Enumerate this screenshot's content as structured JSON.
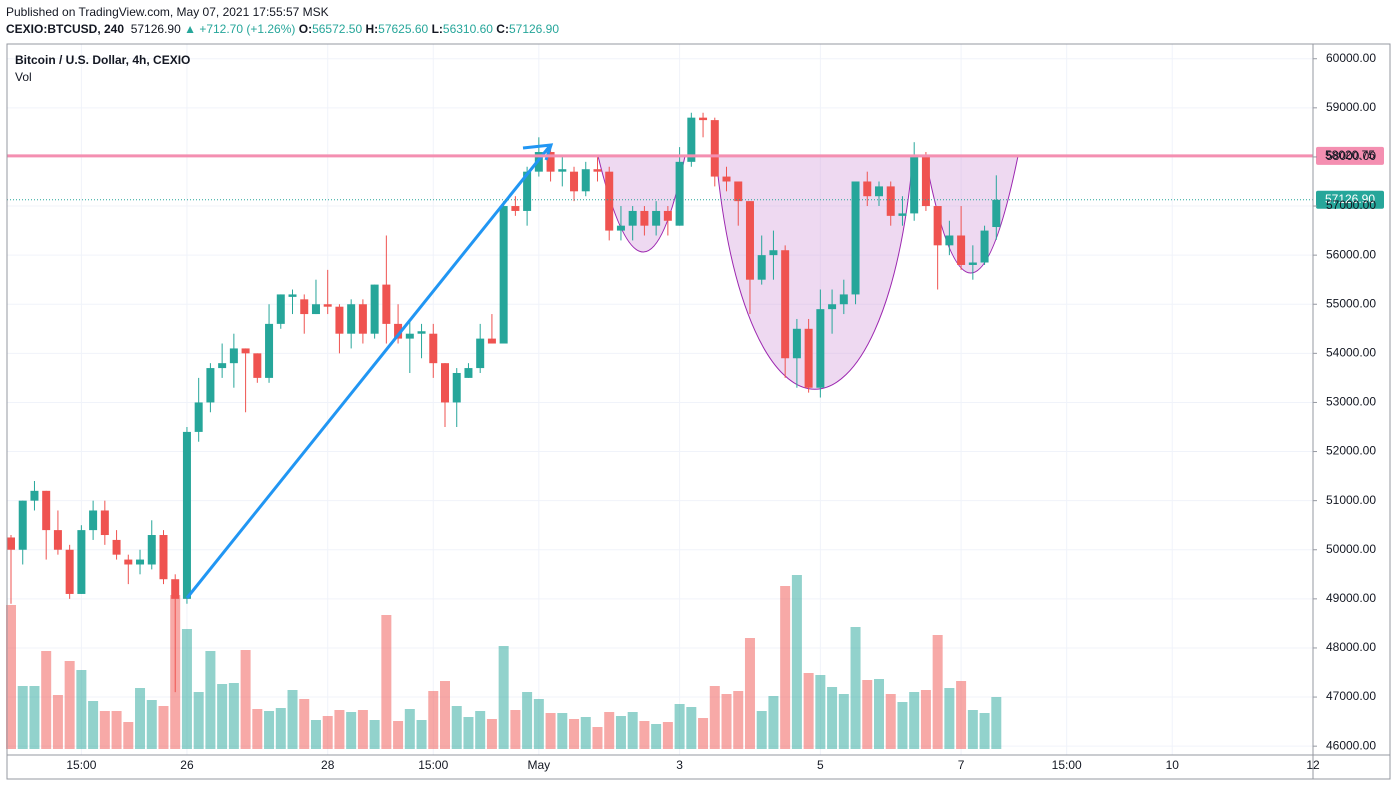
{
  "header": {
    "published": "Published on TradingView.com, May 07, 2021 17:55:57 MSK",
    "symbol": "CEXIO:BTCUSD, 240",
    "last": "57126.90",
    "change": "▲ +712.70 (+1.26%)",
    "o_key": "O:",
    "o": "56572.50",
    "h_key": "H:",
    "h": "57625.60",
    "l_key": "L:",
    "l": "56310.60",
    "c_key": "C:",
    "c": "57126.90"
  },
  "chart_data": {
    "type": "candlestick",
    "title": "Bitcoin / U.S. Dollar, 4h, CEXIO",
    "volume_label": "Vol",
    "up_color": "#26a69a",
    "down_color": "#ef5350",
    "categories": [
      null,
      null,
      null,
      null,
      null,
      null,
      "15:00",
      null,
      null,
      null,
      null,
      null,
      null,
      null,
      null,
      "26",
      null,
      null,
      null,
      null,
      null,
      null,
      null,
      null,
      null,
      null,
      null,
      "28",
      null,
      null,
      null,
      null,
      null,
      null,
      null,
      null,
      "15:00",
      null,
      null,
      null,
      null,
      null,
      null,
      null,
      null,
      "May",
      null,
      null,
      null,
      null,
      null,
      null,
      null,
      null,
      null,
      null,
      null,
      "3",
      null,
      null,
      null,
      null,
      null,
      null,
      null,
      null,
      null,
      null,
      null,
      "5",
      null,
      null,
      null,
      null,
      null,
      null,
      null,
      null,
      null,
      null,
      null,
      "7",
      null,
      null,
      null,
      null,
      null,
      null,
      null,
      null,
      "15:00",
      null,
      null,
      null,
      null,
      null,
      null,
      null,
      null,
      "10",
      null,
      null,
      null,
      null,
      null,
      null,
      null,
      null,
      null,
      null,
      null,
      "12"
    ],
    "open": [
      50250,
      50000,
      51000,
      51200,
      50400,
      50000,
      49100,
      50400,
      50800,
      50200,
      49800,
      49700,
      49700,
      50300,
      49400,
      49000,
      52400,
      53000,
      53700,
      53800,
      54100,
      54000,
      53500,
      54600,
      55150,
      55100,
      54800,
      55000,
      54950,
      54400,
      55000,
      54400,
      55400,
      54600,
      54300,
      54400,
      54400,
      53800,
      53000,
      53500,
      53700,
      54300,
      54200,
      57000,
      56900,
      57700,
      58100,
      57700,
      57700,
      57300,
      57750,
      57700,
      56500,
      56600,
      56900,
      56600,
      56900,
      56600,
      57900,
      58800,
      58750,
      57600,
      57500,
      57100,
      55500,
      56000,
      56100,
      53900,
      54500,
      53300,
      54900,
      55000,
      55200,
      57500,
      57200,
      57400,
      56800,
      56850,
      58000,
      57000,
      56200,
      56400,
      55800,
      55850,
      56572.5,
      null,
      null,
      null,
      null,
      null,
      null,
      null,
      null,
      null,
      null,
      null,
      null,
      null,
      null,
      null,
      null,
      null,
      null,
      null,
      null,
      null,
      null,
      null,
      null,
      null,
      null,
      null
    ],
    "high": [
      50300,
      51000,
      51400,
      51200,
      50800,
      50100,
      50500,
      51000,
      51000,
      50400,
      49900,
      50000,
      50600,
      50400,
      49500,
      52500,
      53500,
      53800,
      54200,
      54400,
      54100,
      54000,
      55000,
      55200,
      55300,
      55200,
      55500,
      55700,
      55000,
      55100,
      55100,
      55400,
      56400,
      55000,
      54700,
      54600,
      54600,
      53800,
      53700,
      53800,
      54600,
      54800,
      57100,
      57200,
      57800,
      58400,
      58200,
      58000,
      57800,
      57900,
      58000,
      57800,
      57000,
      57000,
      57000,
      57100,
      57000,
      58200,
      58900,
      58900,
      58800,
      57800,
      57500,
      57100,
      56400,
      56500,
      56200,
      54700,
      54700,
      55300,
      55300,
      55500,
      57500,
      57700,
      57500,
      57500,
      57200,
      58300,
      58100,
      57000,
      56700,
      57000,
      56200,
      56600,
      57625.6,
      null,
      null,
      null,
      null,
      null,
      null,
      null,
      null,
      null,
      null,
      null,
      null,
      null,
      null,
      null,
      null,
      null,
      null,
      null,
      null,
      null,
      null,
      null,
      null,
      null,
      null,
      null
    ],
    "low": [
      48900,
      49700,
      50800,
      49800,
      49900,
      49000,
      49100,
      50200,
      50100,
      49800,
      49300,
      49500,
      49600,
      49300,
      47100,
      48900,
      52200,
      52800,
      53500,
      53300,
      52800,
      53400,
      53400,
      54500,
      54800,
      54400,
      54800,
      54800,
      54000,
      54100,
      54200,
      54300,
      54200,
      54200,
      53600,
      53900,
      53500,
      52500,
      52500,
      53500,
      53600,
      54200,
      54200,
      56800,
      56600,
      57600,
      57500,
      57400,
      57100,
      57200,
      57500,
      56300,
      56300,
      56300,
      56400,
      56400,
      56400,
      56600,
      57800,
      58400,
      57400,
      57300,
      56600,
      54800,
      55400,
      55500,
      53500,
      53300,
      53200,
      53100,
      54400,
      54800,
      55000,
      57000,
      57000,
      56600,
      56600,
      56700,
      56900,
      55300,
      56000,
      55700,
      55500,
      55800,
      56310.6,
      null,
      null,
      null,
      null,
      null,
      null,
      null,
      null,
      null,
      null,
      null,
      null,
      null,
      null,
      null,
      null,
      null,
      null,
      null,
      null,
      null,
      null,
      null,
      null,
      null,
      null,
      null
    ],
    "close": [
      50000,
      51000,
      51200,
      50400,
      50000,
      49100,
      50400,
      50800,
      50300,
      49900,
      49700,
      49800,
      50300,
      49400,
      49000,
      52400,
      53000,
      53700,
      53800,
      54100,
      54000,
      53500,
      54600,
      55200,
      55200,
      54800,
      55000,
      54950,
      54400,
      55000,
      54400,
      55400,
      54600,
      54300,
      54400,
      54450,
      53800,
      53000,
      53600,
      53700,
      54300,
      54200,
      57000,
      56900,
      57700,
      58100,
      57700,
      57750,
      57300,
      57750,
      57700,
      56500,
      56600,
      56900,
      56600,
      56900,
      56700,
      57900,
      58800,
      58750,
      57600,
      57500,
      57100,
      55500,
      56000,
      56100,
      53900,
      54500,
      53300,
      54900,
      55000,
      55200,
      57500,
      57200,
      57400,
      56800,
      56850,
      58000,
      57000,
      56200,
      56400,
      55800,
      55850,
      56500,
      57126.9,
      null,
      null,
      null,
      null,
      null,
      null,
      null,
      null,
      null,
      null,
      null,
      null,
      null,
      null,
      null,
      null,
      null,
      null,
      null,
      null,
      null,
      null,
      null,
      null,
      null,
      null,
      null
    ],
    "volume": [
      144,
      63,
      63,
      98,
      54,
      88,
      79,
      48,
      38,
      38,
      27,
      61,
      49,
      43,
      154,
      120,
      57,
      98,
      65,
      66,
      99,
      40,
      38,
      41,
      59,
      50,
      29,
      33,
      39,
      37,
      39,
      29,
      134,
      28,
      40,
      29,
      58,
      68,
      43,
      32,
      38,
      30,
      103,
      39,
      57,
      50,
      36,
      36,
      30,
      32,
      22,
      37,
      33,
      37,
      28,
      25,
      27,
      45,
      42,
      31,
      63,
      55,
      58,
      111,
      38,
      53,
      163,
      174,
      76,
      74,
      62,
      55,
      122,
      69,
      70,
      55,
      47,
      57,
      59,
      114,
      61,
      68,
      39,
      36,
      52,
      null,
      null,
      null,
      null,
      null,
      null,
      null,
      null,
      null,
      null,
      null,
      null,
      null,
      null,
      null,
      null,
      null,
      null,
      null,
      null,
      null,
      null,
      null,
      null,
      null,
      null,
      null
    ],
    "ylim": [
      45820,
      60300
    ],
    "yticks": [
      {
        "value": 46000,
        "label": "46000.00"
      },
      {
        "value": 47000,
        "label": "47000.00"
      },
      {
        "value": 48000,
        "label": "48000.00"
      },
      {
        "value": 49000,
        "label": "49000.00"
      },
      {
        "value": 50000,
        "label": "50000.00"
      },
      {
        "value": 51000,
        "label": "51000.00"
      },
      {
        "value": 52000,
        "label": "52000.00"
      },
      {
        "value": 53000,
        "label": "53000.00"
      },
      {
        "value": 54000,
        "label": "54000.00"
      },
      {
        "value": 55000,
        "label": "55000.00"
      },
      {
        "value": 56000,
        "label": "56000.00"
      },
      {
        "value": 57000,
        "label": "57000.00"
      },
      {
        "value": 58000,
        "label": "58000.00"
      },
      {
        "value": 59000,
        "label": "59000.00"
      },
      {
        "value": 60000,
        "label": "60000.00"
      }
    ],
    "grid": true,
    "price_line": {
      "value": 58020.75,
      "color": "#f48fb1"
    },
    "last_price": {
      "value": 57126.9,
      "label": "57126.90"
    }
  }
}
